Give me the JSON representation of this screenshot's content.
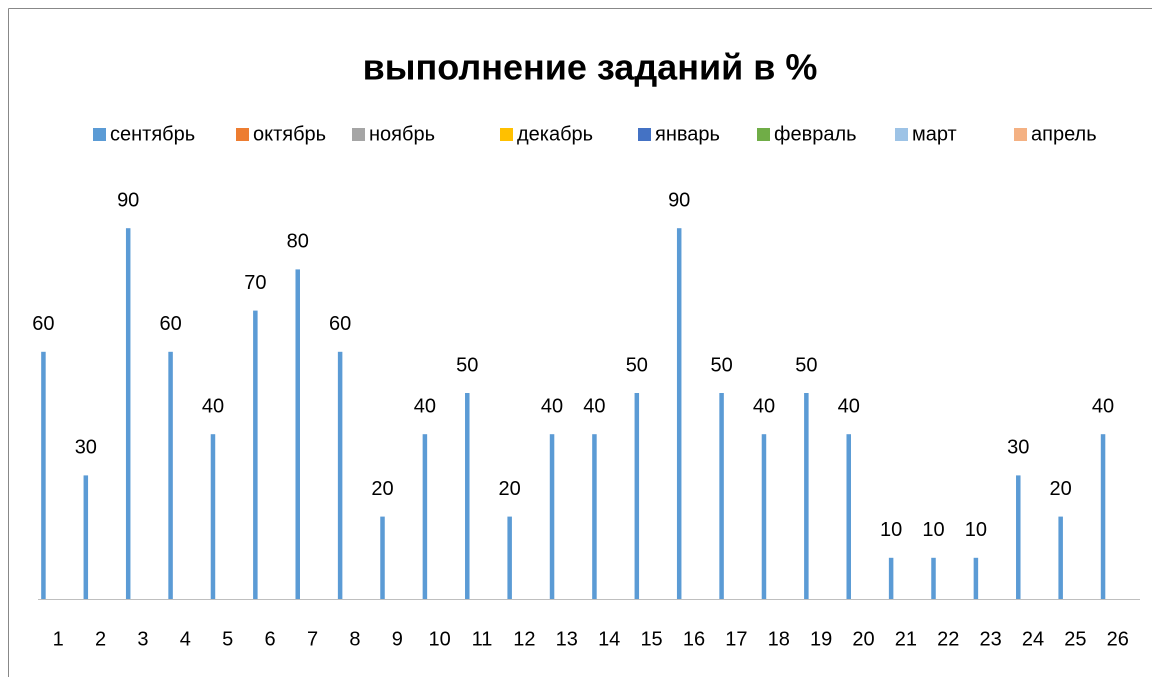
{
  "chart_data": {
    "type": "bar",
    "title": "выполнение заданий в %",
    "categories": [
      "1",
      "2",
      "3",
      "4",
      "5",
      "6",
      "7",
      "8",
      "9",
      "10",
      "11",
      "12",
      "13",
      "14",
      "15",
      "16",
      "17",
      "18",
      "19",
      "20",
      "21",
      "22",
      "23",
      "24",
      "25",
      "26"
    ],
    "series": [
      {
        "name": "сентябрь",
        "color": "#5b9bd5",
        "values": [
          60,
          30,
          90,
          60,
          40,
          70,
          80,
          60,
          20,
          40,
          50,
          20,
          40,
          40,
          50,
          90,
          50,
          40,
          50,
          40,
          10,
          10,
          10,
          30,
          20,
          40
        ]
      },
      {
        "name": "октябрь",
        "color": "#ed7d31",
        "values": [
          null,
          null,
          null,
          null,
          null,
          null,
          null,
          null,
          null,
          null,
          null,
          null,
          null,
          null,
          null,
          null,
          null,
          null,
          null,
          null,
          null,
          null,
          null,
          null,
          null,
          null
        ]
      },
      {
        "name": "ноябрь",
        "color": "#a5a5a5",
        "values": [
          null,
          null,
          null,
          null,
          null,
          null,
          null,
          null,
          null,
          null,
          null,
          null,
          null,
          null,
          null,
          null,
          null,
          null,
          null,
          null,
          null,
          null,
          null,
          null,
          null,
          null
        ]
      },
      {
        "name": "декабрь",
        "color": "#ffc000",
        "values": [
          null,
          null,
          null,
          null,
          null,
          null,
          null,
          null,
          null,
          null,
          null,
          null,
          null,
          null,
          null,
          null,
          null,
          null,
          null,
          null,
          null,
          null,
          null,
          null,
          null,
          null
        ]
      },
      {
        "name": "январь",
        "color": "#4472c4",
        "values": [
          null,
          null,
          null,
          null,
          null,
          null,
          null,
          null,
          null,
          null,
          null,
          null,
          null,
          null,
          null,
          null,
          null,
          null,
          null,
          null,
          null,
          null,
          null,
          null,
          null,
          null
        ]
      },
      {
        "name": "февраль",
        "color": "#70ad47",
        "values": [
          null,
          null,
          null,
          null,
          null,
          null,
          null,
          null,
          null,
          null,
          null,
          null,
          null,
          null,
          null,
          null,
          null,
          null,
          null,
          null,
          null,
          null,
          null,
          null,
          null,
          null
        ]
      },
      {
        "name": "март",
        "color": "#9dc3e6",
        "values": [
          null,
          null,
          null,
          null,
          null,
          null,
          null,
          null,
          null,
          null,
          null,
          null,
          null,
          null,
          null,
          null,
          null,
          null,
          null,
          null,
          null,
          null,
          null,
          null,
          null,
          null
        ]
      },
      {
        "name": "апрель",
        "color": "#f4b183",
        "values": [
          null,
          null,
          null,
          null,
          null,
          null,
          null,
          null,
          null,
          null,
          null,
          null,
          null,
          null,
          null,
          null,
          null,
          null,
          null,
          null,
          null,
          null,
          null,
          null,
          null,
          null
        ]
      }
    ],
    "ylim": [
      0,
      100
    ],
    "legend": "top"
  }
}
